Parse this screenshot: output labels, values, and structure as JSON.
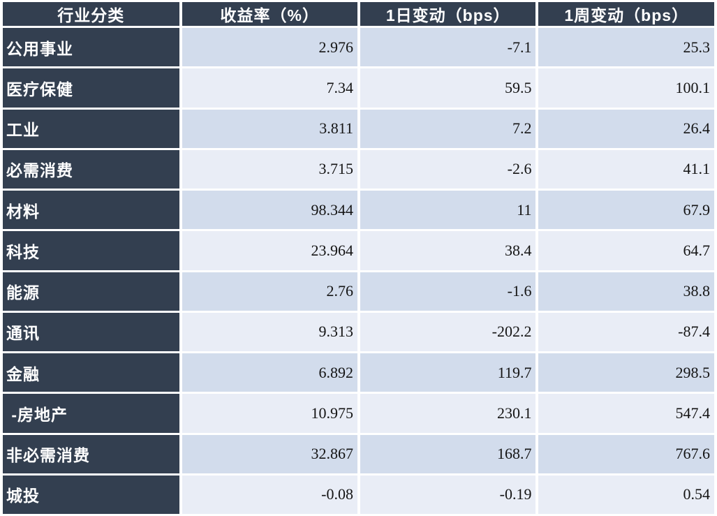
{
  "colors": {
    "header_bg": "#333F50",
    "header_text": "#FFFFFF",
    "band_dark": "#D2DCEC",
    "band_light": "#E9EDF6",
    "gridline": "#FFFFFF",
    "number_text": "#141414"
  },
  "table": {
    "headers": [
      "行业分类",
      "收益率（%）",
      "1日变动（bps）",
      "1周变动（bps）"
    ],
    "rows": [
      {
        "label": "公用事业",
        "yield": "2.976",
        "day_change": "-7.1",
        "week_change": "25.3"
      },
      {
        "label": "医疗保健",
        "yield": "7.34",
        "day_change": "59.5",
        "week_change": "100.1"
      },
      {
        "label": "工业",
        "yield": "3.811",
        "day_change": "7.2",
        "week_change": "26.4"
      },
      {
        "label": "必需消费",
        "yield": "3.715",
        "day_change": "-2.6",
        "week_change": "41.1"
      },
      {
        "label": "材料",
        "yield": "98.344",
        "day_change": "11",
        "week_change": "67.9"
      },
      {
        "label": "科技",
        "yield": "23.964",
        "day_change": "38.4",
        "week_change": "64.7"
      },
      {
        "label": "能源",
        "yield": "2.76",
        "day_change": "-1.6",
        "week_change": "38.8"
      },
      {
        "label": "通讯",
        "yield": "9.313",
        "day_change": "-202.2",
        "week_change": "-87.4"
      },
      {
        "label": "金融",
        "yield": "6.892",
        "day_change": "119.7",
        "week_change": "298.5"
      },
      {
        "label": " -房地产",
        "yield": "10.975",
        "day_change": "230.1",
        "week_change": "547.4"
      },
      {
        "label": "非必需消费",
        "yield": "32.867",
        "day_change": "168.7",
        "week_change": "767.6"
      },
      {
        "label": "城投",
        "yield": "-0.08",
        "day_change": "-0.19",
        "week_change": "0.54"
      }
    ]
  },
  "chart_data": {
    "type": "table",
    "title": "",
    "columns": [
      "行业分类",
      "收益率（%）",
      "1日变动（bps）",
      "1周变动（bps）"
    ],
    "rows": [
      [
        "公用事业",
        2.976,
        -7.1,
        25.3
      ],
      [
        "医疗保健",
        7.34,
        59.5,
        100.1
      ],
      [
        "工业",
        3.811,
        7.2,
        26.4
      ],
      [
        "必需消费",
        3.715,
        -2.6,
        41.1
      ],
      [
        "材料",
        98.344,
        11,
        67.9
      ],
      [
        "科技",
        23.964,
        38.4,
        64.7
      ],
      [
        "能源",
        2.76,
        -1.6,
        38.8
      ],
      [
        "通讯",
        9.313,
        -202.2,
        -87.4
      ],
      [
        "金融",
        6.892,
        119.7,
        298.5
      ],
      [
        "-房地产",
        10.975,
        230.1,
        547.4
      ],
      [
        "非必需消费",
        32.867,
        168.7,
        767.6
      ],
      [
        "城投",
        -0.08,
        -0.19,
        0.54
      ]
    ],
    "layout": {
      "banded_rows": true,
      "header_style": "dark-navy",
      "first_column_style": "dark-navy",
      "numbers_alignment": "right"
    }
  }
}
